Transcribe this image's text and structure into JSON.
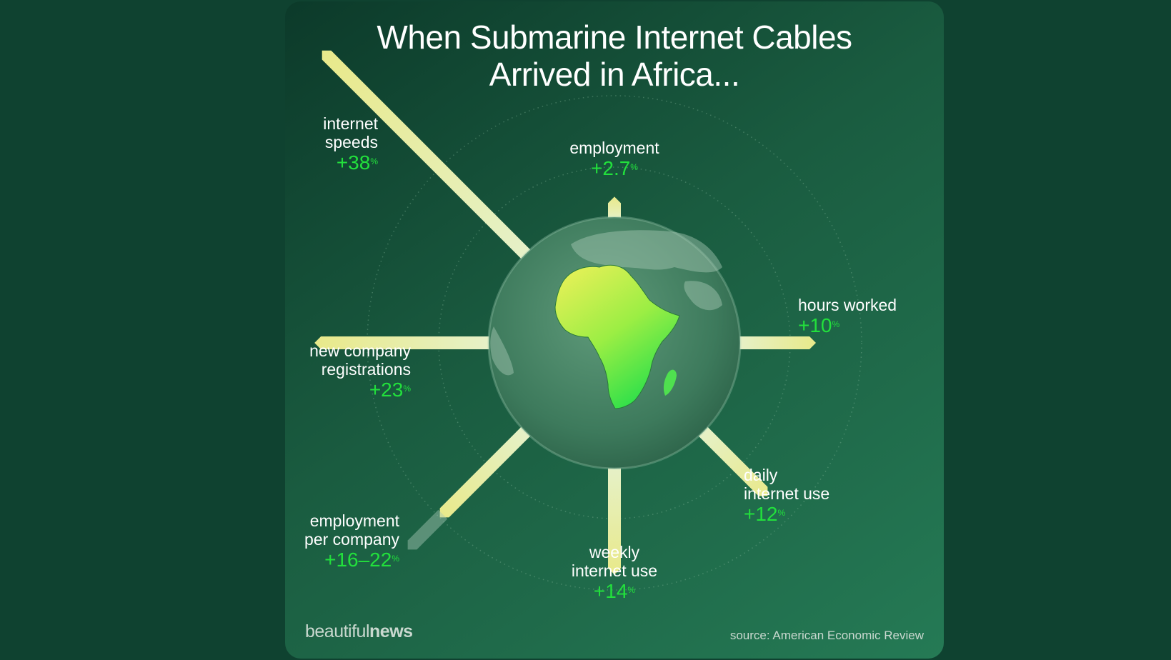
{
  "title_lines": [
    "When Submarine Internet Cables",
    "Arrived in Africa..."
  ],
  "brand": {
    "light": "beautiful",
    "bold": "news"
  },
  "source": "source: American Economic Review",
  "colors": {
    "background": "#0f4230",
    "card_dark": "#0c3a2a",
    "card_light": "#257a55",
    "value_green": "#22e03c",
    "bar_yellow": "#e8e98a",
    "bar_pale": "#e6f1c8",
    "africa_yellow": "#f0f05a",
    "africa_green": "#2ee04a"
  },
  "chart_data": {
    "type": "radial-bar",
    "title": "When Submarine Internet Cables Arrived in Africa...",
    "unit": "%",
    "series": [
      {
        "label": "internet speeds",
        "label_lines": [
          "internet",
          "speeds"
        ],
        "value": "+38",
        "value_num": 38
      },
      {
        "label": "employment",
        "label_lines": [
          "employment"
        ],
        "value": "+2.7",
        "value_num": 2.7
      },
      {
        "label": "hours worked",
        "label_lines": [
          "hours worked"
        ],
        "value": "+10",
        "value_num": 10
      },
      {
        "label": "daily internet use",
        "label_lines": [
          "daily",
          "internet use"
        ],
        "value": "+12",
        "value_num": 12
      },
      {
        "label": "weekly internet use",
        "label_lines": [
          "weekly",
          "internet use"
        ],
        "value": "+14",
        "value_num": 14
      },
      {
        "label": "employment per company",
        "label_lines": [
          "employment",
          "per company"
        ],
        "value": "+16–22",
        "value_range": [
          16,
          22
        ]
      },
      {
        "label": "new company registrations",
        "label_lines": [
          "new company",
          "registrations"
        ],
        "value": "+23",
        "value_num": 23
      }
    ],
    "grid": "dotted concentric circles",
    "source": "American Economic Review"
  }
}
